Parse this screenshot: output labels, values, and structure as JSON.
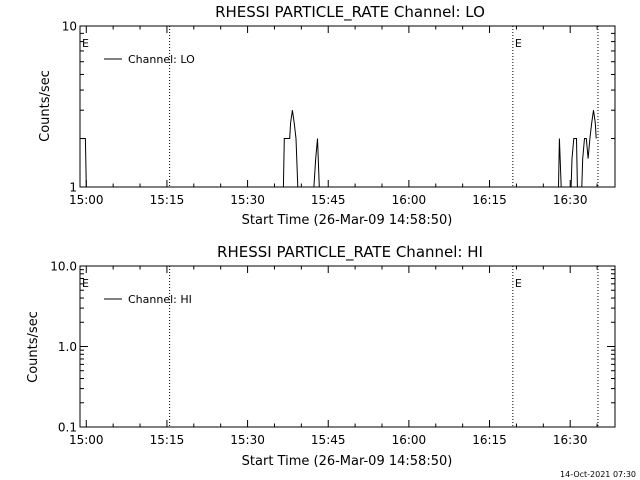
{
  "footer": {
    "timestamp": "14-Oct-2021 07:30"
  },
  "chart_data": [
    {
      "type": "line",
      "title": "RHESSI PARTICLE_RATE Channel: LO",
      "xlabel": "Start Time (26-Mar-09 14:58:50)",
      "ylabel": "Counts/sec",
      "yscale": "log",
      "ylim": [
        1,
        10
      ],
      "y_tick_values": [
        1,
        10
      ],
      "y_tick_labels": [
        "1",
        "10"
      ],
      "xlim": [
        "14:58:50",
        "16:38:20"
      ],
      "x_tick_values": [
        "15:00",
        "15:15",
        "15:30",
        "15:45",
        "16:00",
        "16:15",
        "16:30"
      ],
      "grid": false,
      "legend": "top-left",
      "event_markers": [
        {
          "time": "14:58:50",
          "label": "E",
          "line": false
        },
        {
          "time": "15:15:30",
          "label": "",
          "line": true
        },
        {
          "time": "16:19:20",
          "label": "E",
          "line": true
        },
        {
          "time": "16:35:10",
          "label": "",
          "line": true
        }
      ],
      "series": [
        {
          "name": "Channel: LO",
          "points": [
            [
              "14:58:50",
              2
            ],
            [
              "14:59:50",
              2
            ],
            [
              "15:00:00",
              1
            ],
            [
              "15:36:40",
              1
            ],
            [
              "15:36:50",
              2
            ],
            [
              "15:37:50",
              2
            ],
            [
              "15:38:00",
              2.5
            ],
            [
              "15:38:20",
              3
            ],
            [
              "15:38:40",
              2.5
            ],
            [
              "15:39:00",
              2
            ],
            [
              "15:39:20",
              1
            ],
            [
              "15:42:20",
              1
            ],
            [
              "15:42:40",
              1.5
            ],
            [
              "15:43:00",
              2
            ],
            [
              "15:43:20",
              1
            ],
            [
              "16:27:50",
              1
            ],
            [
              "16:28:00",
              2
            ],
            [
              "16:28:20",
              1
            ],
            [
              "16:30:10",
              1
            ],
            [
              "16:30:20",
              1.5
            ],
            [
              "16:30:40",
              2
            ],
            [
              "16:31:10",
              2
            ],
            [
              "16:31:20",
              1
            ],
            [
              "16:32:10",
              1
            ],
            [
              "16:32:20",
              1.5
            ],
            [
              "16:32:40",
              2
            ],
            [
              "16:33:00",
              2
            ],
            [
              "16:33:20",
              1.5
            ],
            [
              "16:33:40",
              2
            ],
            [
              "16:34:00",
              2.5
            ],
            [
              "16:34:20",
              3
            ],
            [
              "16:34:40",
              2.5
            ],
            [
              "16:34:50",
              2
            ]
          ]
        }
      ]
    },
    {
      "type": "line",
      "title": "RHESSI PARTICLE_RATE Channel: HI",
      "xlabel": "Start Time (26-Mar-09 14:58:50)",
      "ylabel": "Counts/sec",
      "yscale": "log",
      "ylim": [
        0.1,
        10
      ],
      "y_tick_values": [
        0.1,
        1,
        10
      ],
      "y_tick_labels": [
        "0.1",
        "1.0",
        "10.0"
      ],
      "xlim": [
        "14:58:50",
        "16:38:20"
      ],
      "x_tick_values": [
        "15:00",
        "15:15",
        "15:30",
        "15:45",
        "16:00",
        "16:15",
        "16:30"
      ],
      "grid": false,
      "legend": "top-left",
      "event_markers": [
        {
          "time": "14:58:50",
          "label": "E",
          "line": false
        },
        {
          "time": "15:15:30",
          "label": "",
          "line": true
        },
        {
          "time": "16:19:20",
          "label": "E",
          "line": true
        },
        {
          "time": "16:35:10",
          "label": "",
          "line": true
        }
      ],
      "series": [
        {
          "name": "Channel: HI",
          "points": []
        }
      ]
    }
  ]
}
